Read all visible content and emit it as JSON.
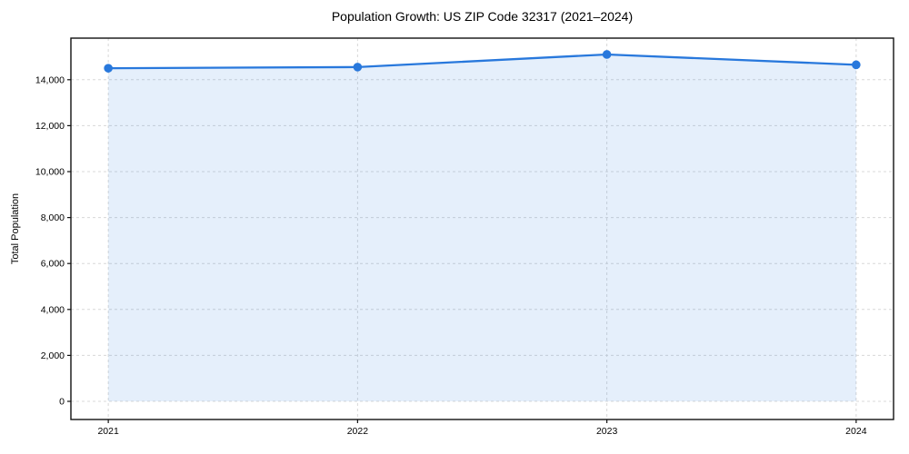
{
  "chart_data": {
    "type": "line",
    "title": "Population Growth: US ZIP Code 32317 (2021–2024)",
    "xlabel": "",
    "ylabel": "Total Population",
    "x": [
      2021,
      2022,
      2023,
      2024
    ],
    "x_tick_labels": [
      "2021",
      "2022",
      "2023",
      "2024"
    ],
    "y_ticks": [
      0,
      2000,
      4000,
      6000,
      8000,
      10000,
      12000,
      14000
    ],
    "y_tick_labels": [
      "0",
      "2,000",
      "4,000",
      "6,000",
      "8,000",
      "10,000",
      "12,000",
      "14,000"
    ],
    "series": [
      {
        "name": "Total Population",
        "values": [
          14500,
          14550,
          15100,
          14650
        ]
      }
    ],
    "xlim": [
      2020.85,
      2024.15
    ],
    "ylim": [
      -790,
      15810
    ],
    "grid": true,
    "grid_line_style": "dashed",
    "legend_position": "none",
    "area_fill": true,
    "colors": {
      "line": "#2878dc",
      "marker": "#2878dc",
      "area": "rgba(40,120,220,0.12)",
      "grid": "#d8d8d8",
      "spine": "#111111",
      "text": "#000000",
      "background": "#ffffff"
    }
  }
}
